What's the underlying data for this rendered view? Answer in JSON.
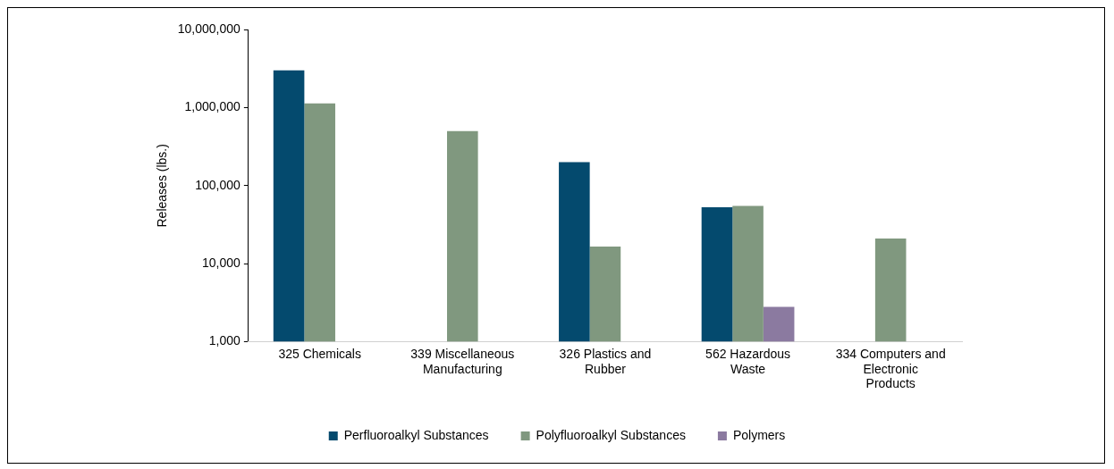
{
  "chart_data": {
    "type": "bar",
    "ylabel": "Releases (lbs.)",
    "categories": [
      "325 Chemicals",
      "339 Miscellaneous Manufacturing",
      "326 Plastics and Rubber",
      "562 Hazardous Waste",
      "334 Computers and Electronic Products"
    ],
    "series": [
      {
        "name": "Perfluoroalkyl Substances",
        "color": "#044a6e",
        "values": [
          3000000,
          null,
          200000,
          53000,
          null
        ]
      },
      {
        "name": "Polyfluoroalkyl Substances",
        "color": "#80987f",
        "values": [
          1130000,
          500000,
          16600,
          55000,
          21000
        ]
      },
      {
        "name": "Polymers",
        "color": "#8b7aa0",
        "values": [
          null,
          null,
          null,
          2800,
          null
        ]
      }
    ],
    "log": "y",
    "ylim": [
      1000,
      10000000
    ],
    "yticks": [
      {
        "value": 1000,
        "label": "1,000"
      },
      {
        "value": 10000,
        "label": "10,000"
      },
      {
        "value": 100000,
        "label": "100,000"
      },
      {
        "value": 1000000,
        "label": "1,000,000"
      },
      {
        "value": 10000000,
        "label": "10,000,000"
      }
    ],
    "grid": false,
    "legend": "bottom"
  }
}
